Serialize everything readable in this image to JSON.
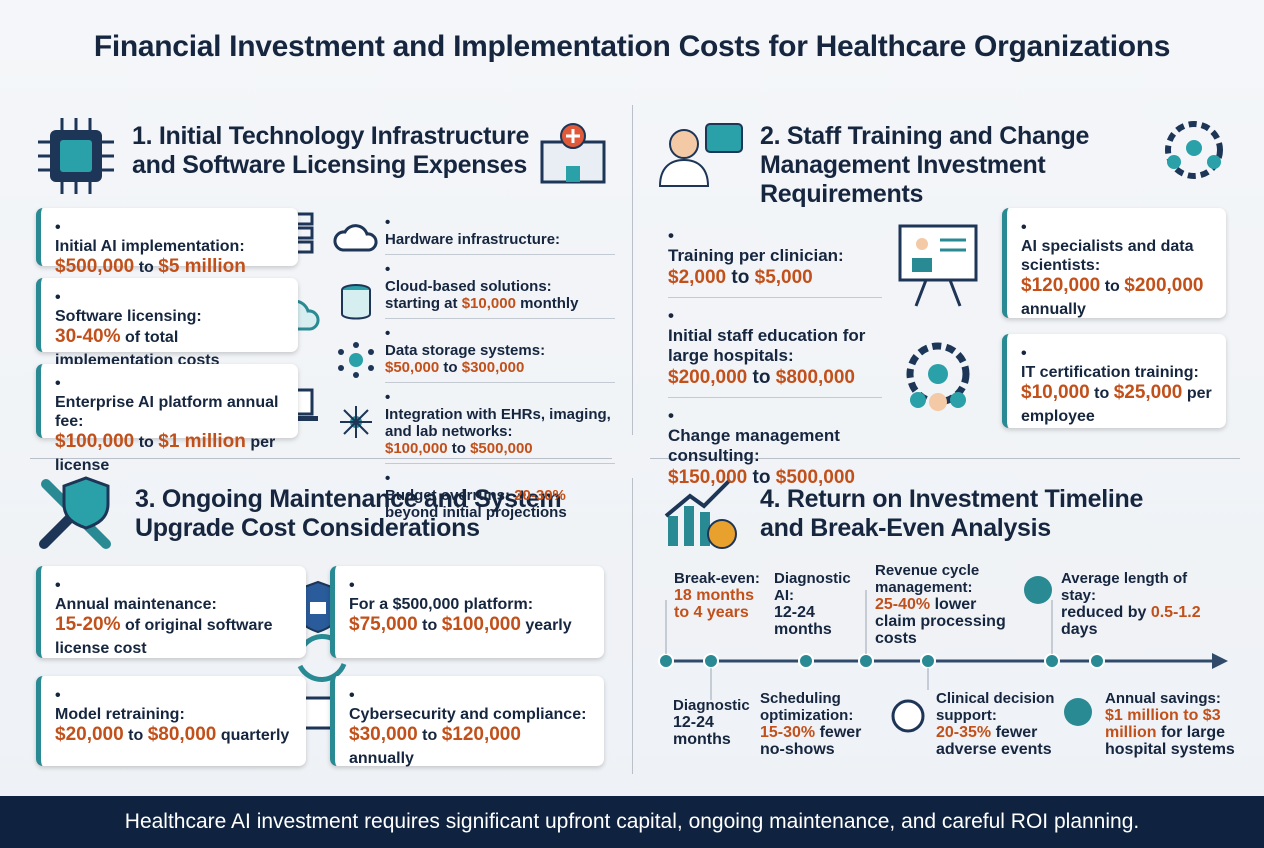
{
  "title": "Financial Investment and Implementation Costs for Healthcare Organizations",
  "sections": [
    {
      "heading": "1. Initial Technology Infrastructure and Software Licensing Expenses",
      "cards": [
        {
          "label": "Initial AI implementation:",
          "parts": [
            {
              "em": "$500,000"
            },
            " to ",
            {
              "em": "$5 million"
            }
          ]
        },
        {
          "label": "Software licensing:",
          "parts": [
            {
              "em": "30-40%"
            },
            " of total implementation costs"
          ]
        },
        {
          "label": "Enterprise AI platform annual fee:",
          "parts": [
            {
              "em": "$100,000"
            },
            " to ",
            {
              "em": "$1 million"
            },
            " per license"
          ]
        }
      ],
      "list": [
        {
          "label": "Hardware infrastructure:",
          "parts": []
        },
        {
          "label": "Cloud-based solutions:",
          "parts": [
            "starting at ",
            {
              "em": "$10,000"
            },
            " monthly"
          ]
        },
        {
          "label": "Data storage systems:",
          "parts": [
            {
              "em": "$50,000"
            },
            " to ",
            {
              "em": "$300,000"
            }
          ]
        },
        {
          "label": "Integration with EHRs, imaging, and lab networks:",
          "parts": [
            {
              "em": "$100,000"
            },
            " to ",
            {
              "em": "$500,000"
            }
          ]
        },
        {
          "parts": [
            "Budget overruns: ",
            {
              "em": "20-30%"
            },
            " beyond initial projections"
          ]
        }
      ]
    },
    {
      "heading": "2. Staff Training and Change Management Investment Requirements",
      "list": [
        {
          "label": "Training per clinician:",
          "parts": [
            {
              "em": "$2,000"
            },
            " to ",
            {
              "em": "$5,000"
            }
          ]
        },
        {
          "label": "Initial staff education for large hospitals:",
          "parts": [
            {
              "em": "$200,000"
            },
            " to ",
            {
              "em": "$800,000"
            }
          ]
        },
        {
          "label": "Change management consulting:",
          "parts": [
            {
              "em": "$150,000"
            },
            " to ",
            {
              "em": "$500,000"
            }
          ]
        }
      ],
      "cards": [
        {
          "label": "AI specialists and data scientists:",
          "parts": [
            {
              "em": "$120,000"
            },
            " to ",
            {
              "em": "$200,000"
            },
            " annually"
          ]
        },
        {
          "label": "IT certification training:",
          "parts": [
            {
              "em": "$10,000"
            },
            " to ",
            {
              "em": "$25,000"
            },
            " per employee"
          ]
        }
      ]
    },
    {
      "heading": "3. Ongoing Maintenance and System Upgrade Cost Considerations",
      "cards": [
        {
          "label": "Annual maintenance:",
          "parts": [
            {
              "em": "15-20%"
            },
            " of original software license cost"
          ]
        },
        {
          "label": "For a $500,000 platform:",
          "parts": [
            {
              "em": "$75,000"
            },
            " to ",
            {
              "em": "$100,000"
            },
            " yearly"
          ]
        },
        {
          "label": "Model retraining:",
          "parts": [
            {
              "em": "$20,000"
            },
            " to ",
            {
              "em": "$80,000"
            },
            " quarterly"
          ]
        },
        {
          "label": "Cybersecurity and compliance:",
          "parts": [
            {
              "em": "$30,000"
            },
            " to ",
            {
              "em": "$120,000"
            },
            " annually"
          ]
        }
      ]
    },
    {
      "heading": "4. Return on Investment Timeline and Break-Even Analysis",
      "above": [
        {
          "label": "Break-even:",
          "parts": [
            {
              "em": "18 months to 4 years"
            }
          ]
        },
        {
          "label": "Diagnostic AI:",
          "parts": [
            "12-24 months"
          ]
        },
        {
          "label": "Revenue cycle management:",
          "parts": [
            {
              "em": "25-40%"
            },
            " lower claim processing costs"
          ]
        },
        {
          "label": "Average length of stay:",
          "parts": [
            "reduced by ",
            {
              "em": "0.5-1.2"
            },
            " days"
          ]
        }
      ],
      "below": [
        {
          "label": "Diagnostic",
          "parts": [
            "12-24 months"
          ]
        },
        {
          "label": "Scheduling optimization:",
          "parts": [
            {
              "em": "15-30%"
            },
            " fewer no-shows"
          ]
        },
        {
          "label": "Clinical decision support:",
          "parts": [
            {
              "em": "20-35%"
            },
            " fewer adverse events"
          ]
        },
        {
          "label": "Annual savings:",
          "parts": [
            {
              "em": "$1 million to $3 million"
            },
            " for large hospital systems"
          ]
        }
      ]
    }
  ],
  "footer": "Healthcare AI investment requires significant upfront capital, ongoing maintenance, and careful ROI planning."
}
